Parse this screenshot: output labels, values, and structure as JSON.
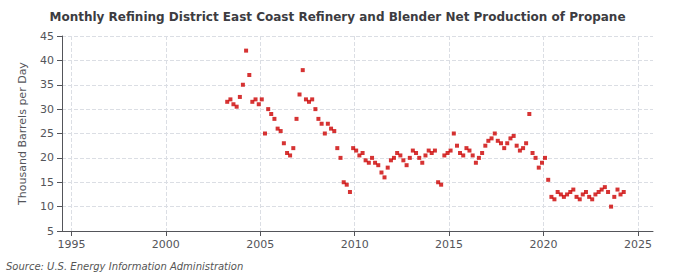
{
  "chart_data": {
    "type": "scatter",
    "title": "Monthly Refining District East Coast Refinery and Blender Net Production of Propane",
    "ylabel": "Thousand Barrels per Day",
    "annotations": [
      "Source: U.S. Energy Information Administration"
    ],
    "color": "#cc0000",
    "marker": "square",
    "grid": true,
    "xlim": [
      1994.5,
      2025.8
    ],
    "ylim": [
      5,
      45
    ],
    "xticks": [
      1995,
      2000,
      2005,
      2010,
      2015,
      2020,
      2025
    ],
    "yticks": [
      5,
      10,
      15,
      20,
      25,
      30,
      35,
      40,
      45
    ],
    "x": [
      2003.25,
      2003.42,
      2003.58,
      2003.75,
      2003.92,
      2004.08,
      2004.25,
      2004.42,
      2004.58,
      2004.75,
      2004.92,
      2005.08,
      2005.25,
      2005.42,
      2005.58,
      2005.75,
      2005.92,
      2006.08,
      2006.25,
      2006.42,
      2006.58,
      2006.75,
      2006.92,
      2007.08,
      2007.25,
      2007.42,
      2007.58,
      2007.75,
      2007.92,
      2008.08,
      2008.25,
      2008.42,
      2008.58,
      2008.75,
      2008.92,
      2009.08,
      2009.25,
      2009.42,
      2009.58,
      2009.75,
      2009.92,
      2010.08,
      2010.25,
      2010.42,
      2010.58,
      2010.75,
      2010.92,
      2011.08,
      2011.25,
      2011.42,
      2011.58,
      2011.75,
      2011.92,
      2012.08,
      2012.25,
      2012.42,
      2012.58,
      2012.75,
      2012.92,
      2013.08,
      2013.25,
      2013.42,
      2013.58,
      2013.75,
      2013.92,
      2014.08,
      2014.25,
      2014.42,
      2014.58,
      2014.75,
      2014.92,
      2015.08,
      2015.25,
      2015.42,
      2015.58,
      2015.75,
      2015.92,
      2016.08,
      2016.25,
      2016.42,
      2016.58,
      2016.75,
      2016.92,
      2017.08,
      2017.25,
      2017.42,
      2017.58,
      2017.75,
      2017.92,
      2018.08,
      2018.25,
      2018.42,
      2018.58,
      2018.75,
      2018.92,
      2019.08,
      2019.25,
      2019.42,
      2019.58,
      2019.75,
      2019.92,
      2020.08,
      2020.25,
      2020.42,
      2020.58,
      2020.75,
      2020.92,
      2021.08,
      2021.25,
      2021.42,
      2021.58,
      2021.75,
      2021.92,
      2022.08,
      2022.25,
      2022.42,
      2022.58,
      2022.75,
      2022.92,
      2023.08,
      2023.25,
      2023.42,
      2023.58,
      2023.75,
      2023.92,
      2024.08,
      2024.25
    ],
    "values": [
      31.5,
      32.0,
      31.0,
      30.5,
      32.5,
      35.0,
      42.0,
      37.0,
      31.5,
      32.0,
      31.0,
      32.0,
      25.0,
      30.0,
      29.0,
      28.0,
      26.0,
      25.5,
      23.0,
      21.0,
      20.5,
      22.0,
      28.0,
      33.0,
      38.0,
      32.0,
      31.5,
      32.0,
      30.0,
      28.0,
      27.0,
      25.0,
      27.0,
      26.0,
      25.5,
      22.0,
      20.0,
      15.0,
      14.5,
      13.0,
      22.0,
      21.5,
      20.5,
      21.0,
      19.5,
      19.0,
      20.0,
      19.0,
      18.5,
      17.0,
      16.0,
      18.0,
      19.5,
      20.0,
      21.0,
      20.5,
      19.5,
      18.5,
      20.0,
      21.5,
      21.0,
      20.0,
      19.0,
      20.5,
      21.5,
      21.0,
      21.5,
      15.0,
      14.5,
      20.5,
      21.0,
      21.5,
      25.0,
      22.5,
      21.0,
      20.5,
      22.0,
      21.5,
      20.5,
      19.0,
      20.0,
      21.0,
      22.5,
      23.5,
      24.0,
      25.0,
      23.5,
      23.0,
      22.0,
      23.0,
      24.0,
      24.5,
      22.5,
      21.5,
      22.0,
      23.0,
      29.0,
      21.0,
      20.0,
      18.0,
      19.0,
      20.0,
      15.5,
      12.0,
      11.5,
      13.0,
      12.5,
      12.0,
      12.5,
      13.0,
      13.5,
      12.0,
      11.5,
      12.5,
      13.0,
      12.0,
      11.5,
      12.5,
      13.0,
      13.5,
      14.0,
      13.0,
      10.0,
      12.0,
      13.5,
      12.5,
      13.0
    ]
  }
}
